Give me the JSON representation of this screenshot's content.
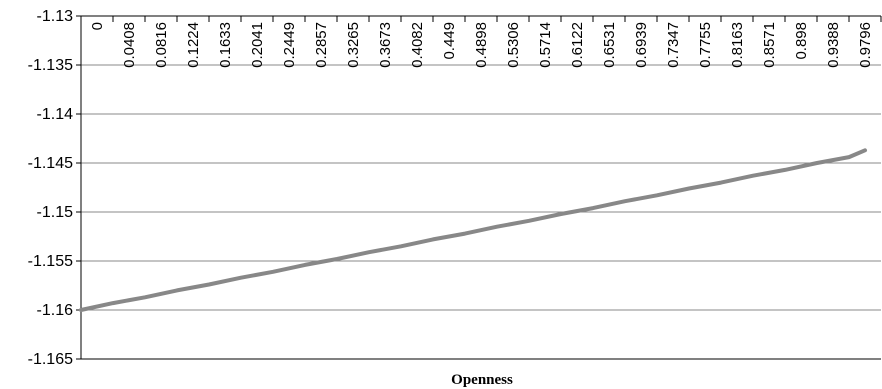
{
  "chart_data": {
    "type": "line",
    "title": "",
    "xlabel": "Openness",
    "ylabel": "",
    "ylim": [
      -1.165,
      -1.13
    ],
    "yticks": [
      -1.13,
      -1.135,
      -1.14,
      -1.145,
      -1.15,
      -1.155,
      -1.16,
      -1.165
    ],
    "ytick_labels": [
      "-1.13",
      "-1.135",
      "-1.14",
      "-1.145",
      "-1.15",
      "-1.155",
      "-1.16",
      "-1.165"
    ],
    "xtick_labels": [
      "0",
      "0.0408",
      "0.0816",
      "0.1224",
      "0.1633",
      "0.2041",
      "0.2449",
      "0.2857",
      "0.3265",
      "0.3673",
      "0.4082",
      "0.449",
      "0.4898",
      "0.5306",
      "0.5714",
      "0.6122",
      "0.6531",
      "0.6939",
      "0.7347",
      "0.7755",
      "0.8163",
      "0.8571",
      "0.898",
      "0.9388",
      "0.9796"
    ],
    "x": [
      0,
      0.0408,
      0.0816,
      0.1224,
      0.1633,
      0.2041,
      0.2449,
      0.2857,
      0.3265,
      0.3673,
      0.4082,
      0.449,
      0.4898,
      0.5306,
      0.5714,
      0.6122,
      0.6531,
      0.6939,
      0.7347,
      0.7755,
      0.8163,
      0.8571,
      0.898,
      0.9388,
      0.9796,
      1.0
    ],
    "series": [
      {
        "values": [
          -1.16,
          -1.1593,
          -1.1587,
          -1.158,
          -1.1574,
          -1.1567,
          -1.1561,
          -1.1554,
          -1.1548,
          -1.1541,
          -1.1535,
          -1.1528,
          -1.1522,
          -1.1515,
          -1.1509,
          -1.1502,
          -1.1496,
          -1.1489,
          -1.1483,
          -1.1476,
          -1.147,
          -1.1463,
          -1.1457,
          -1.145,
          -1.1444,
          -1.1437
        ],
        "color": "#888888"
      }
    ],
    "grid": true,
    "gridlines": "horizontal"
  }
}
